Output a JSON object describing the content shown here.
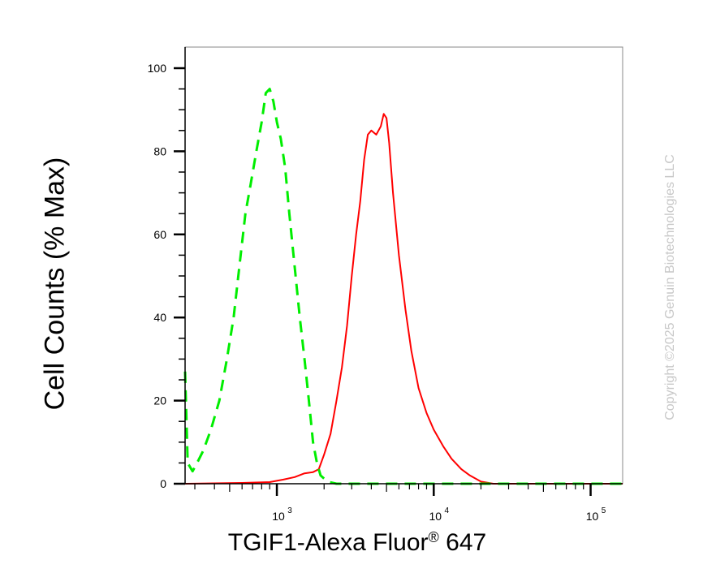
{
  "chart_data": {
    "type": "line",
    "xlabel_main": "TGIF1-Alexa Fluor",
    "xlabel_reg": "®",
    "xlabel_tail": " 647",
    "ylabel": "Cell Counts (% Max)",
    "x_scale": "log",
    "xlim": [
      260,
      160000
    ],
    "ylim": [
      0,
      105
    ],
    "y_ticks": [
      0,
      20,
      40,
      60,
      80,
      100
    ],
    "x_ticks": [
      {
        "value": 1000,
        "base": "10",
        "exp": "3"
      },
      {
        "value": 10000,
        "base": "10",
        "exp": "4"
      },
      {
        "value": 100000,
        "base": "10",
        "exp": "5"
      }
    ],
    "grid": false,
    "series": [
      {
        "color": "#ff0000",
        "style": "solid",
        "points": [
          [
            260,
            0
          ],
          [
            600,
            0.2
          ],
          [
            900,
            0.4
          ],
          [
            1100,
            1
          ],
          [
            1300,
            1.6
          ],
          [
            1500,
            2.5
          ],
          [
            1700,
            2.8
          ],
          [
            1850,
            3.5
          ],
          [
            2000,
            7
          ],
          [
            2200,
            12
          ],
          [
            2400,
            20
          ],
          [
            2600,
            28
          ],
          [
            2800,
            38
          ],
          [
            3000,
            50
          ],
          [
            3200,
            60
          ],
          [
            3400,
            68
          ],
          [
            3600,
            78
          ],
          [
            3800,
            84
          ],
          [
            4000,
            85
          ],
          [
            4300,
            84
          ],
          [
            4600,
            86
          ],
          [
            4800,
            89
          ],
          [
            5000,
            88
          ],
          [
            5200,
            82
          ],
          [
            5500,
            70
          ],
          [
            6000,
            55
          ],
          [
            6600,
            42
          ],
          [
            7200,
            32
          ],
          [
            8000,
            23
          ],
          [
            9000,
            17
          ],
          [
            10000,
            13
          ],
          [
            11500,
            9
          ],
          [
            13000,
            6
          ],
          [
            15000,
            3.5
          ],
          [
            17000,
            2
          ],
          [
            20000,
            0.5
          ],
          [
            24000,
            0
          ],
          [
            160000,
            0
          ]
        ]
      },
      {
        "color": "#00ee00",
        "style": "dashed",
        "points": [
          [
            260,
            27
          ],
          [
            270,
            5
          ],
          [
            290,
            3
          ],
          [
            310,
            5
          ],
          [
            340,
            8
          ],
          [
            380,
            13
          ],
          [
            430,
            20
          ],
          [
            480,
            30
          ],
          [
            530,
            40
          ],
          [
            580,
            53
          ],
          [
            630,
            65
          ],
          [
            680,
            72
          ],
          [
            740,
            80
          ],
          [
            800,
            87
          ],
          [
            850,
            94
          ],
          [
            900,
            95
          ],
          [
            950,
            92
          ],
          [
            1000,
            87
          ],
          [
            1060,
            83
          ],
          [
            1130,
            76
          ],
          [
            1200,
            65
          ],
          [
            1300,
            52
          ],
          [
            1400,
            40
          ],
          [
            1500,
            30
          ],
          [
            1600,
            20
          ],
          [
            1700,
            10
          ],
          [
            1800,
            5
          ],
          [
            1900,
            2
          ],
          [
            2100,
            0.5
          ],
          [
            2400,
            0
          ],
          [
            160000,
            0
          ]
        ]
      }
    ]
  },
  "copyright": "Copyright ©2025 Genuin Biotechnologies LLC"
}
